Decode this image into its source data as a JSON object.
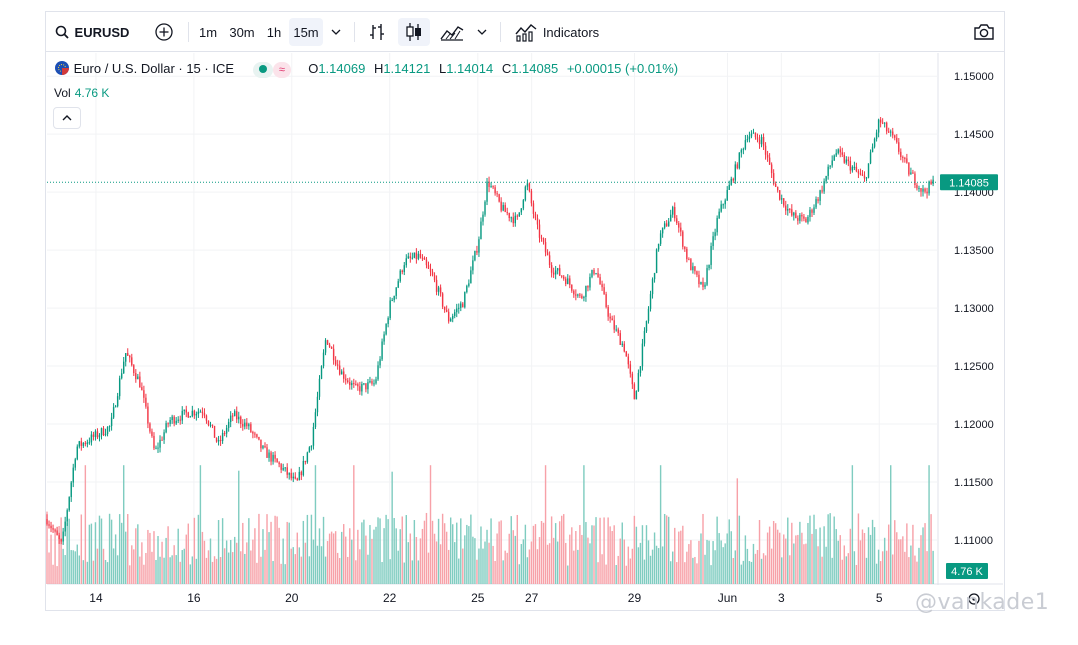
{
  "toolbar": {
    "symbol": "EURUSD",
    "intervals": [
      "1m",
      "30m",
      "1h",
      "15m"
    ],
    "selected_interval": "15m",
    "indicators_label": "Indicators",
    "icons": [
      "search-icon",
      "add-symbol-icon",
      "chevron-down-icon",
      "bar-chart-icon",
      "candle-chart-icon",
      "area-chart-icon",
      "chevron-down-icon",
      "indicators-icon",
      "camera-icon"
    ]
  },
  "legend": {
    "title": "Euro / U.S. Dollar · 15 · ICE",
    "o_label": "O",
    "o": "1.14069",
    "h_label": "H",
    "h": "1.14121",
    "l_label": "L",
    "l": "1.14014",
    "c_label": "C",
    "c": "1.14085",
    "change": "+0.00015 (+0.01%)",
    "vol_label": "Vol",
    "vol_value": "4.76 K"
  },
  "colors": {
    "up": "#089981",
    "down": "#f23645",
    "vol_up": "#7fccc0",
    "vol_down": "#f7a1a8",
    "grid": "#f2f3f5",
    "price_tag": "#089981"
  },
  "watermark": "@vankade1",
  "chart_data": {
    "type": "candlestick",
    "symbol": "EURUSD",
    "interval": "15",
    "y_range": [
      1.1062,
      1.152
    ],
    "y_ticks": [
      "1.15000",
      "1.14500",
      "1.14000",
      "1.13500",
      "1.13000",
      "1.12500",
      "1.12000",
      "1.11500",
      "1.11000"
    ],
    "x_ticks": [
      {
        "label": "14",
        "x": 13
      },
      {
        "label": "16",
        "x": 15
      },
      {
        "label": "20",
        "x": 17
      },
      {
        "label": "22",
        "x": 19
      },
      {
        "label": "25",
        "x": 20.8
      },
      {
        "label": "27",
        "x": 21.9
      },
      {
        "label": "29",
        "x": 24
      },
      {
        "label": "Jun",
        "x": 25.9
      },
      {
        "label": "3",
        "x": 27
      },
      {
        "label": "5",
        "x": 29
      }
    ],
    "last_price": "1.14085",
    "last_volume": "4.76 K",
    "close_series": {
      "x": [
        12.0,
        12.3,
        12.6,
        13.0,
        13.3,
        13.6,
        13.9,
        14.2,
        14.5,
        14.9,
        15.2,
        15.5,
        15.8,
        16.1,
        16.4,
        16.8,
        17.1,
        17.4,
        17.7,
        18.0,
        18.3,
        18.7,
        19.0,
        19.3,
        19.6,
        19.9,
        20.2,
        20.5,
        20.8,
        21.0,
        21.3,
        21.6,
        21.8,
        22.0,
        22.3,
        22.6,
        22.9,
        23.2,
        23.5,
        23.8,
        24.0,
        24.2,
        24.5,
        24.8,
        25.1,
        25.4,
        25.7,
        26.0,
        26.3,
        26.6,
        26.9,
        27.2,
        27.5,
        27.8,
        28.1,
        28.4,
        28.7,
        29.0,
        29.3,
        29.6,
        29.9,
        30.1
      ],
      "close": [
        1.1118,
        1.1095,
        1.118,
        1.119,
        1.1198,
        1.1262,
        1.1235,
        1.1175,
        1.1203,
        1.121,
        1.1212,
        1.1182,
        1.1208,
        1.1198,
        1.1178,
        1.1162,
        1.1148,
        1.1185,
        1.1275,
        1.1245,
        1.123,
        1.1235,
        1.1302,
        1.134,
        1.1345,
        1.1325,
        1.129,
        1.1305,
        1.1355,
        1.141,
        1.1385,
        1.1375,
        1.1408,
        1.137,
        1.1335,
        1.1325,
        1.1308,
        1.1335,
        1.129,
        1.1265,
        1.1222,
        1.1275,
        1.136,
        1.1385,
        1.134,
        1.1315,
        1.1378,
        1.1412,
        1.145,
        1.1445,
        1.1402,
        1.138,
        1.1375,
        1.14,
        1.1435,
        1.1423,
        1.141,
        1.1462,
        1.1445,
        1.1418,
        1.14,
        1.1408
      ]
    }
  }
}
